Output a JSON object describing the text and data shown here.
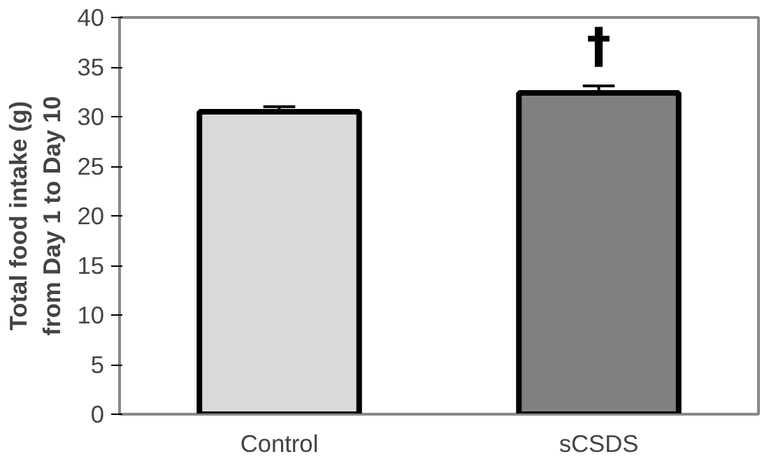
{
  "chart_data": {
    "type": "bar",
    "ylabel": "Total food intake (g)\nfrom Day 1 to Day 10",
    "categories": [
      "Control",
      "sCSDS"
    ],
    "values": [
      30.5,
      32.4
    ],
    "colors": [
      "#d9d9d9",
      "#808080"
    ],
    "errors": [
      0.5,
      0.7
    ],
    "ylim": [
      0,
      40
    ],
    "yticks": [
      0,
      5,
      10,
      15,
      20,
      25,
      30,
      35,
      40
    ],
    "grid": false,
    "annotations": [
      "†"
    ]
  }
}
